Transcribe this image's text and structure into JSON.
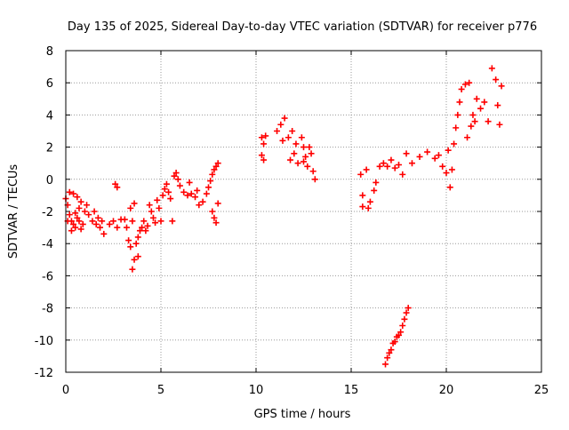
{
  "chart_data": {
    "type": "scatter",
    "title": "Day 135 of 2025, Sidereal Day-to-day VTEC variation (SDTVAR) for receiver p776",
    "xlabel": "GPS time / hours",
    "ylabel": "SDTVAR / TECUs",
    "xlim": [
      0,
      25
    ],
    "ylim": [
      -12,
      8
    ],
    "xticks": [
      0,
      5,
      10,
      15,
      20,
      25
    ],
    "yticks": [
      -12,
      -10,
      -8,
      -6,
      -4,
      -2,
      0,
      2,
      4,
      6,
      8
    ],
    "xtick_labels": [
      "0",
      "5",
      "10",
      "15",
      "20",
      "25"
    ],
    "ytick_labels": [
      "-12",
      "-10",
      "-8",
      "-6",
      "-4",
      "-2",
      "0",
      "2",
      "4",
      "6",
      "8"
    ],
    "grid": true,
    "marker": "+",
    "marker_color": "#ff0000",
    "series": [
      {
        "name": "SDTVAR p776",
        "points": [
          [
            0.0,
            -1.2
          ],
          [
            0.1,
            -1.6
          ],
          [
            0.2,
            -2.2
          ],
          [
            0.3,
            -2.6
          ],
          [
            0.4,
            -2.8
          ],
          [
            0.5,
            -3.0
          ],
          [
            0.6,
            -2.4
          ],
          [
            0.7,
            -2.6
          ],
          [
            0.8,
            -3.1
          ],
          [
            0.9,
            -2.8
          ],
          [
            0.2,
            -0.8
          ],
          [
            0.4,
            -0.9
          ],
          [
            0.6,
            -1.1
          ],
          [
            0.8,
            -1.4
          ],
          [
            1.0,
            -2.0
          ],
          [
            1.1,
            -1.6
          ],
          [
            0.1,
            -2.6
          ],
          [
            0.3,
            -3.2
          ],
          [
            0.5,
            -2.1
          ],
          [
            0.7,
            -1.8
          ],
          [
            1.2,
            -2.2
          ],
          [
            1.4,
            -2.6
          ],
          [
            1.5,
            -2.0
          ],
          [
            1.6,
            -2.8
          ],
          [
            1.7,
            -2.4
          ],
          [
            1.8,
            -3.0
          ],
          [
            1.9,
            -2.6
          ],
          [
            2.0,
            -3.4
          ],
          [
            2.3,
            -2.8
          ],
          [
            2.5,
            -2.6
          ],
          [
            2.7,
            -3.0
          ],
          [
            2.9,
            -2.5
          ],
          [
            2.6,
            -0.3
          ],
          [
            2.7,
            -0.5
          ],
          [
            3.1,
            -2.5
          ],
          [
            3.2,
            -3.0
          ],
          [
            3.3,
            -3.8
          ],
          [
            3.4,
            -4.2
          ],
          [
            3.5,
            -2.6
          ],
          [
            3.5,
            -5.6
          ],
          [
            3.6,
            -5.0
          ],
          [
            3.7,
            -4.0
          ],
          [
            3.8,
            -3.6
          ],
          [
            3.9,
            -3.2
          ],
          [
            3.4,
            -1.8
          ],
          [
            3.6,
            -1.5
          ],
          [
            3.8,
            -4.8
          ],
          [
            4.0,
            -3.0
          ],
          [
            4.1,
            -2.6
          ],
          [
            4.2,
            -3.2
          ],
          [
            4.3,
            -2.9
          ],
          [
            4.4,
            -1.6
          ],
          [
            4.5,
            -2.0
          ],
          [
            4.6,
            -2.4
          ],
          [
            4.7,
            -2.7
          ],
          [
            4.8,
            -1.3
          ],
          [
            4.9,
            -1.8
          ],
          [
            5.0,
            -2.6
          ],
          [
            5.1,
            -1.0
          ],
          [
            5.2,
            -0.6
          ],
          [
            5.3,
            -0.3
          ],
          [
            5.4,
            -0.8
          ],
          [
            5.5,
            -1.2
          ],
          [
            5.6,
            -2.6
          ],
          [
            5.7,
            0.2
          ],
          [
            5.8,
            0.4
          ],
          [
            5.9,
            0.0
          ],
          [
            6.0,
            -0.4
          ],
          [
            6.2,
            -0.8
          ],
          [
            6.4,
            -1.0
          ],
          [
            6.5,
            -0.2
          ],
          [
            6.6,
            -0.9
          ],
          [
            6.8,
            -1.1
          ],
          [
            6.9,
            -0.7
          ],
          [
            7.0,
            -1.6
          ],
          [
            7.2,
            -1.4
          ],
          [
            7.4,
            -0.9
          ],
          [
            7.5,
            -0.5
          ],
          [
            7.6,
            -0.1
          ],
          [
            7.7,
            0.3
          ],
          [
            7.8,
            0.6
          ],
          [
            7.9,
            0.8
          ],
          [
            8.0,
            1.0
          ],
          [
            7.7,
            -2.0
          ],
          [
            7.8,
            -2.4
          ],
          [
            7.9,
            -2.7
          ],
          [
            8.0,
            -1.5
          ],
          [
            10.3,
            2.6
          ],
          [
            10.4,
            2.2
          ],
          [
            10.5,
            2.7
          ],
          [
            10.3,
            1.5
          ],
          [
            10.4,
            1.2
          ],
          [
            11.1,
            3.0
          ],
          [
            11.3,
            3.4
          ],
          [
            11.5,
            3.8
          ],
          [
            11.4,
            2.4
          ],
          [
            11.7,
            2.6
          ],
          [
            11.9,
            3.0
          ],
          [
            11.8,
            1.2
          ],
          [
            12.0,
            1.6
          ],
          [
            12.1,
            2.2
          ],
          [
            12.2,
            1.0
          ],
          [
            12.4,
            2.6
          ],
          [
            12.5,
            2.0
          ],
          [
            12.6,
            1.4
          ],
          [
            12.7,
            0.8
          ],
          [
            12.8,
            2.0
          ],
          [
            12.9,
            1.6
          ],
          [
            13.0,
            0.5
          ],
          [
            13.1,
            0.0
          ],
          [
            12.5,
            1.1
          ],
          [
            15.5,
            0.3
          ],
          [
            15.6,
            -1.0
          ],
          [
            15.6,
            -1.7
          ],
          [
            15.8,
            0.6
          ],
          [
            15.9,
            -1.8
          ],
          [
            16.0,
            -1.4
          ],
          [
            16.2,
            -0.7
          ],
          [
            16.3,
            -0.2
          ],
          [
            16.5,
            0.8
          ],
          [
            16.7,
            1.0
          ],
          [
            16.9,
            0.8
          ],
          [
            17.1,
            1.2
          ],
          [
            17.3,
            0.7
          ],
          [
            17.5,
            0.9
          ],
          [
            17.7,
            0.3
          ],
          [
            17.9,
            1.6
          ],
          [
            18.2,
            1.0
          ],
          [
            18.6,
            1.4
          ],
          [
            19.0,
            1.7
          ],
          [
            19.4,
            1.3
          ],
          [
            19.6,
            1.5
          ],
          [
            19.8,
            0.8
          ],
          [
            20.0,
            0.4
          ],
          [
            20.2,
            -0.5
          ],
          [
            20.1,
            1.8
          ],
          [
            20.3,
            0.6
          ],
          [
            20.4,
            2.2
          ],
          [
            20.5,
            3.2
          ],
          [
            20.6,
            4.0
          ],
          [
            20.7,
            4.8
          ],
          [
            20.8,
            5.6
          ],
          [
            21.0,
            5.9
          ],
          [
            21.2,
            6.0
          ],
          [
            21.4,
            4.0
          ],
          [
            21.6,
            5.0
          ],
          [
            21.8,
            4.4
          ],
          [
            22.0,
            4.8
          ],
          [
            22.2,
            3.6
          ],
          [
            22.4,
            6.9
          ],
          [
            22.6,
            6.2
          ],
          [
            22.7,
            4.6
          ],
          [
            22.8,
            3.4
          ],
          [
            22.9,
            5.8
          ],
          [
            21.3,
            3.3
          ],
          [
            21.5,
            3.6
          ],
          [
            21.1,
            2.6
          ],
          [
            16.8,
            -11.5
          ],
          [
            16.9,
            -11.1
          ],
          [
            17.0,
            -10.8
          ],
          [
            17.1,
            -10.6
          ],
          [
            17.2,
            -10.2
          ],
          [
            17.3,
            -10.1
          ],
          [
            17.4,
            -9.8
          ],
          [
            17.5,
            -9.7
          ],
          [
            17.6,
            -9.5
          ],
          [
            17.7,
            -9.1
          ],
          [
            17.8,
            -8.7
          ],
          [
            17.9,
            -8.3
          ],
          [
            18.0,
            -8.0
          ]
        ]
      }
    ]
  }
}
